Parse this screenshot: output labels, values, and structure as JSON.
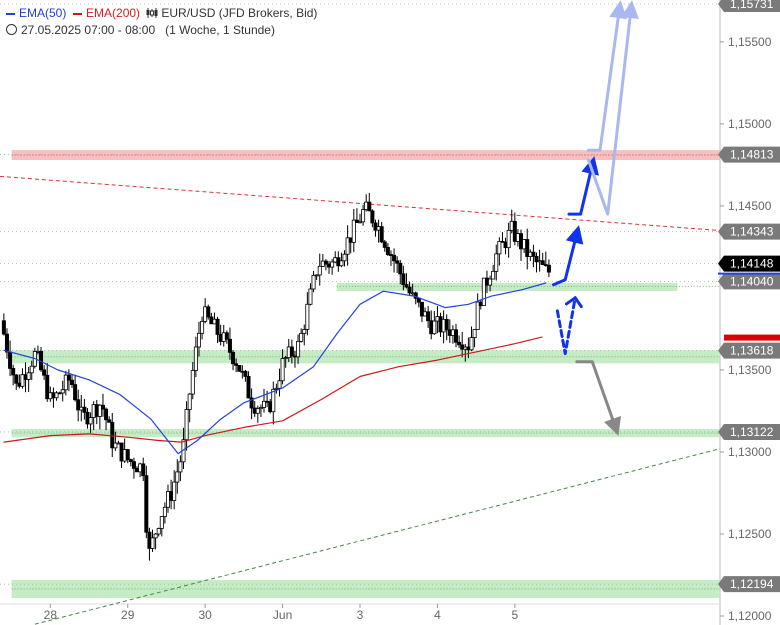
{
  "legend": {
    "ema50_label": "EMA(50)",
    "ema200_label": "EMA(200)",
    "instrument": "EUR/USD (JFD Brokers, Bid)",
    "period": "27.05.2025 07:00 - 08:00",
    "timeframe": "(1 Woche, 1 Stunde)"
  },
  "colors": {
    "ema50": "#2244dd",
    "ema200": "#cc1a1a",
    "support_zone": "#bfeabf",
    "resistance_zone": "#f6b8b8",
    "candle": "#000000"
  },
  "chart_data": {
    "type": "candlestick",
    "instrument": "EUR/USD",
    "ylim": [
      1.12,
      1.15731
    ],
    "y_ticks": [
      "1,15500",
      "1,15000",
      "1,14500",
      "1,13500",
      "1,13000",
      "1,12500",
      "1,12000"
    ],
    "x_ticks": [
      "28",
      "29",
      "30",
      "Jun",
      "3",
      "4",
      "5"
    ],
    "x_tick_pos": [
      0.5,
      1.5,
      2.5,
      3.5,
      4.5,
      5.5,
      6.5
    ],
    "x_domain": [
      -0.15,
      9.15
    ],
    "price_tags": [
      {
        "label": "1,15731",
        "value": 1.15731,
        "style": "gray"
      },
      {
        "label": "1,14813",
        "value": 1.14813,
        "style": "gray"
      },
      {
        "label": "1,14343",
        "value": 1.14343,
        "style": "gray"
      },
      {
        "label": "1,14148",
        "value": 1.14148,
        "style": "black"
      },
      {
        "label": "1,14040",
        "value": 1.1404,
        "style": "gray"
      },
      {
        "label": "1,13618",
        "value": 1.13618,
        "style": "gray"
      },
      {
        "label": "1,13122",
        "value": 1.13122,
        "style": "gray"
      },
      {
        "label": "1,12194",
        "value": 1.12194,
        "style": "gray"
      }
    ],
    "support_zones": [
      {
        "from": 1.1362,
        "to": 1.1354,
        "x0": 0.0,
        "x1": 9.15
      },
      {
        "from": 1.1403,
        "to": 1.1399,
        "x0": 4.2,
        "x1": 8.6
      },
      {
        "from": 1.1314,
        "to": 1.1309,
        "x0": 0.0,
        "x1": 9.15
      },
      {
        "from": 1.1222,
        "to": 1.1211,
        "x0": 0.0,
        "x1": 9.15
      }
    ],
    "resistance_zones": [
      {
        "from": 1.1484,
        "to": 1.1478,
        "x0": 0.0,
        "x1": 9.15
      }
    ],
    "trendlines": [
      {
        "color": "#dd3333",
        "dash": "4,3",
        "points": [
          [
            -0.15,
            1.1468
          ],
          [
            9.15,
            1.1435
          ]
        ]
      },
      {
        "color": "#448844",
        "dash": "4,3",
        "points": [
          [
            0.3,
            1.1195
          ],
          [
            9.15,
            1.1302
          ]
        ]
      }
    ],
    "ema50": [
      [
        -0.1,
        1.1362
      ],
      [
        0.3,
        1.1357
      ],
      [
        0.6,
        1.135
      ],
      [
        1.0,
        1.1344
      ],
      [
        1.4,
        1.1335
      ],
      [
        1.8,
        1.132
      ],
      [
        2.15,
        1.1299
      ],
      [
        2.4,
        1.1307
      ],
      [
        2.7,
        1.132
      ],
      [
        3.0,
        1.133
      ],
      [
        3.5,
        1.1339
      ],
      [
        3.9,
        1.1352
      ],
      [
        4.2,
        1.1372
      ],
      [
        4.5,
        1.139
      ],
      [
        4.8,
        1.1398
      ],
      [
        5.2,
        1.1395
      ],
      [
        5.6,
        1.1388
      ],
      [
        5.9,
        1.139
      ],
      [
        6.2,
        1.1395
      ],
      [
        6.6,
        1.1399
      ],
      [
        6.9,
        1.1403
      ]
    ],
    "ema200": [
      [
        -0.1,
        1.1306
      ],
      [
        0.5,
        1.131
      ],
      [
        1.0,
        1.1311
      ],
      [
        1.5,
        1.1309
      ],
      [
        1.9,
        1.1307
      ],
      [
        2.2,
        1.1306
      ],
      [
        2.5,
        1.131
      ],
      [
        3.0,
        1.1315
      ],
      [
        3.5,
        1.1319
      ],
      [
        4.0,
        1.1332
      ],
      [
        4.5,
        1.1346
      ],
      [
        5.0,
        1.1352
      ],
      [
        5.5,
        1.1356
      ],
      [
        6.0,
        1.1361
      ],
      [
        6.5,
        1.1366
      ],
      [
        6.85,
        1.137
      ]
    ],
    "price_path": [
      [
        -0.1,
        1.138
      ],
      [
        0.1,
        1.134
      ],
      [
        0.35,
        1.136
      ],
      [
        0.55,
        1.133
      ],
      [
        0.8,
        1.1345
      ],
      [
        0.95,
        1.132
      ],
      [
        1.2,
        1.133
      ],
      [
        1.35,
        1.1305
      ],
      [
        1.55,
        1.1295
      ],
      [
        1.75,
        1.129
      ],
      [
        1.8,
        1.1235
      ],
      [
        1.95,
        1.126
      ],
      [
        2.1,
        1.1275
      ],
      [
        2.25,
        1.13
      ],
      [
        2.35,
        1.134
      ],
      [
        2.5,
        1.1385
      ],
      [
        2.75,
        1.137
      ],
      [
        2.95,
        1.1355
      ],
      [
        3.15,
        1.133
      ],
      [
        3.35,
        1.1325
      ],
      [
        3.55,
        1.1355
      ],
      [
        3.75,
        1.1365
      ],
      [
        4.0,
        1.1415
      ],
      [
        4.2,
        1.1415
      ],
      [
        4.4,
        1.143
      ],
      [
        4.6,
        1.1448
      ],
      [
        4.75,
        1.144
      ],
      [
        4.95,
        1.142
      ],
      [
        5.2,
        1.1395
      ],
      [
        5.45,
        1.1378
      ],
      [
        5.7,
        1.1375
      ],
      [
        5.95,
        1.1365
      ],
      [
        6.1,
        1.1395
      ],
      [
        6.3,
        1.142
      ],
      [
        6.5,
        1.1435
      ],
      [
        6.75,
        1.1418
      ],
      [
        6.95,
        1.141
      ]
    ],
    "scenario_arrows": [
      {
        "color": "#1133ee",
        "dash": "",
        "width": 3,
        "points": [
          [
            7.0,
            1.1402
          ],
          [
            7.15,
            1.1405
          ],
          [
            7.3,
            1.1433
          ]
        ]
      },
      {
        "color": "#1133ee",
        "dash": "",
        "width": 3,
        "points": [
          [
            7.2,
            1.1445
          ],
          [
            7.35,
            1.1445
          ],
          [
            7.5,
            1.1475
          ]
        ]
      },
      {
        "color": "#1133ee",
        "dash": "6,4",
        "width": 3,
        "points": [
          [
            7.05,
            1.1386
          ],
          [
            7.15,
            1.136
          ],
          [
            7.28,
            1.1394
          ]
        ]
      },
      {
        "color": "#888888",
        "dash": "",
        "width": 3,
        "points": [
          [
            7.3,
            1.1355
          ],
          [
            7.5,
            1.1355
          ],
          [
            7.8,
            1.1315
          ]
        ]
      },
      {
        "color": "#aab8f0",
        "dash": "",
        "width": 3,
        "points": [
          [
            7.45,
            1.1484
          ],
          [
            7.6,
            1.1484
          ],
          [
            7.85,
            1.157
          ]
        ]
      },
      {
        "color": "#aab8f0",
        "dash": "",
        "width": 3,
        "points": [
          [
            7.45,
            1.1478
          ],
          [
            7.7,
            1.1445
          ],
          [
            8.0,
            1.157
          ]
        ]
      }
    ]
  }
}
